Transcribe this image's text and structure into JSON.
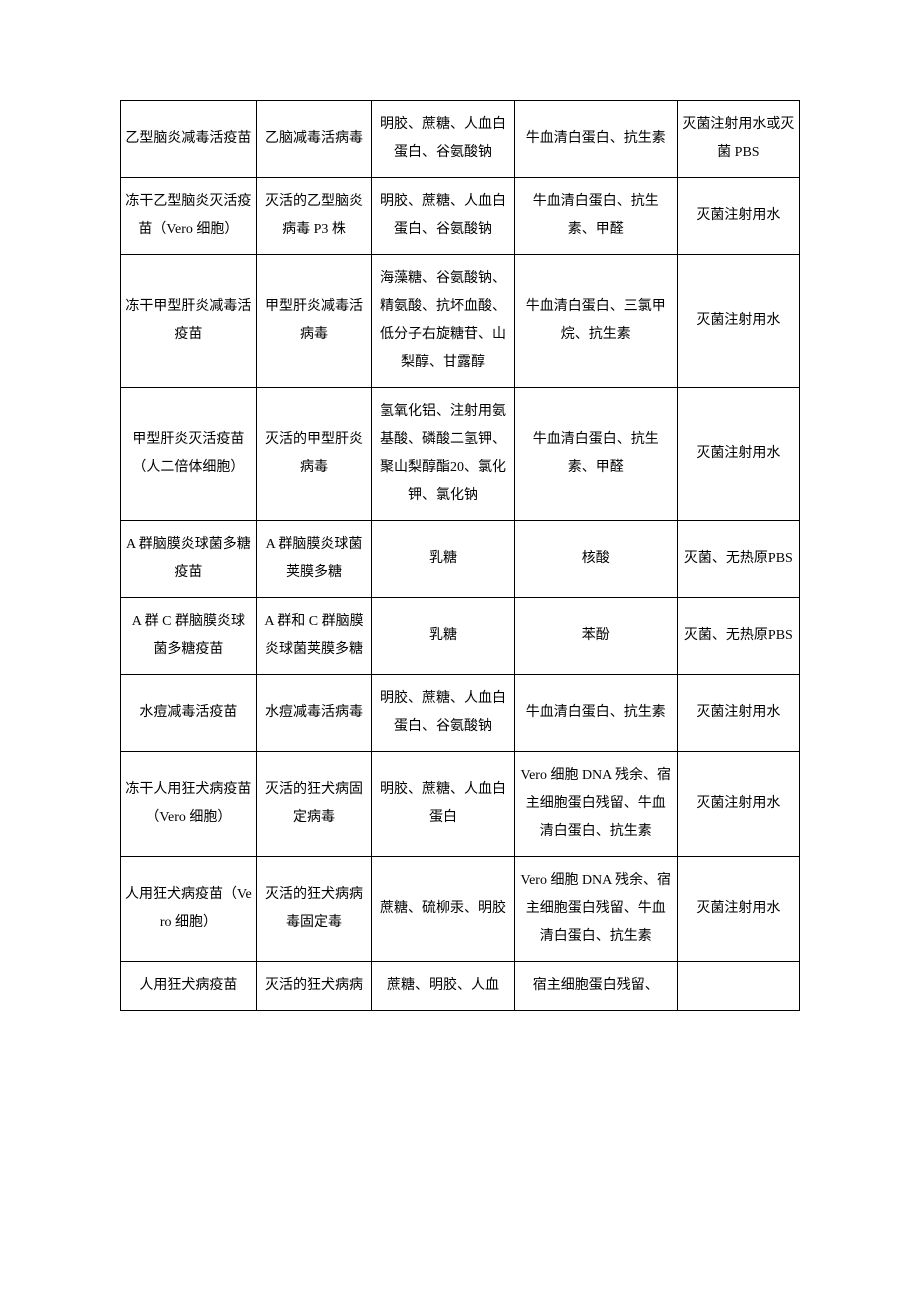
{
  "table": {
    "columns": [
      "c1",
      "c2",
      "c3",
      "c4",
      "c5"
    ],
    "rows": [
      [
        "乙型脑炎减毒活疫苗",
        "乙脑减毒活病毒",
        "明胶、蔗糖、人血白蛋白、谷氨酸钠",
        "牛血清白蛋白、抗生素",
        "灭菌注射用水或灭菌 PBS"
      ],
      [
        "冻干乙型脑炎灭活疫苗（Vero 细胞）",
        "灭活的乙型脑炎病毒 P3 株",
        "明胶、蔗糖、人血白蛋白、谷氨酸钠",
        "牛血清白蛋白、抗生素、甲醛",
        "灭菌注射用水"
      ],
      [
        "冻干甲型肝炎减毒活疫苗",
        "甲型肝炎减毒活病毒",
        "海藻糖、谷氨酸钠、精氨酸、抗坏血酸、低分子右旋糖苷、山梨醇、甘露醇",
        "牛血清白蛋白、三氯甲烷、抗生素",
        "灭菌注射用水"
      ],
      [
        "甲型肝炎灭活疫苗（人二倍体细胞）",
        "灭活的甲型肝炎病毒",
        "氢氧化铝、注射用氨基酸、磷酸二氢钾、聚山梨醇酯20、氯化钾、氯化钠",
        "牛血清白蛋白、抗生素、甲醛",
        "灭菌注射用水"
      ],
      [
        "A 群脑膜炎球菌多糖疫苗",
        "A 群脑膜炎球菌荚膜多糖",
        "乳糖",
        "核酸",
        "灭菌、无热原PBS"
      ],
      [
        "A 群 C 群脑膜炎球菌多糖疫苗",
        "A 群和 C 群脑膜炎球菌荚膜多糖",
        "乳糖",
        "苯酚",
        "灭菌、无热原PBS"
      ],
      [
        "水痘减毒活疫苗",
        "水痘减毒活病毒",
        "明胶、蔗糖、人血白蛋白、谷氨酸钠",
        "牛血清白蛋白、抗生素",
        "灭菌注射用水"
      ],
      [
        "冻干人用狂犬病疫苗（Vero 细胞）",
        "灭活的狂犬病固定病毒",
        "明胶、蔗糖、人血白蛋白",
        "Vero 细胞 DNA 残余、宿主细胞蛋白残留、牛血清白蛋白、抗生素",
        "灭菌注射用水"
      ],
      [
        "人用狂犬病疫苗（Vero 细胞）",
        "灭活的狂犬病病毒固定毒",
        "蔗糖、硫柳汞、明胶",
        "Vero 细胞 DNA 残余、宿主细胞蛋白残留、牛血清白蛋白、抗生素",
        "灭菌注射用水"
      ],
      [
        "人用狂犬病疫苗",
        "灭活的狂犬病病",
        "蔗糖、明胶、人血",
        "宿主细胞蛋白残留、",
        ""
      ]
    ],
    "border_color": "#000000",
    "font_size": 14,
    "text_color": "#000000",
    "background_color": "#ffffff"
  }
}
